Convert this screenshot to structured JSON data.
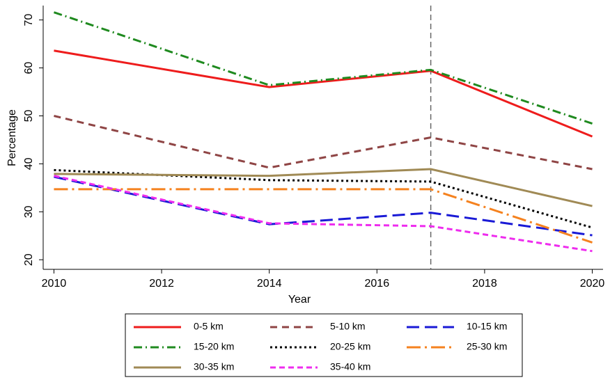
{
  "chart_data": {
    "type": "line",
    "x_label": "Year",
    "y_label": "Percentage",
    "x": [
      2010,
      2014,
      2017,
      2020
    ],
    "xlim": [
      2009.8,
      2020.2
    ],
    "xticks": [
      2010,
      2012,
      2014,
      2016,
      2018,
      2020
    ],
    "ylim": [
      18,
      73
    ],
    "yticks": [
      20,
      30,
      40,
      50,
      60,
      70
    ],
    "vline": 2017,
    "series": [
      {
        "name": "0-5 km",
        "color": "#ee1c1c",
        "dash": "solid",
        "values": [
          63.6,
          56,
          59.4,
          45.7
        ]
      },
      {
        "name": "5-10 km",
        "color": "#8f4545",
        "dash": "dash",
        "values": [
          50,
          39.2,
          45.5,
          38.9
        ]
      },
      {
        "name": "10-15 km",
        "color": "#1a1ad6",
        "dash": "longdash",
        "values": [
          37.3,
          27.4,
          29.8,
          25.1
        ]
      },
      {
        "name": "15-20 km",
        "color": "#1f8a1f",
        "dash": "dashdot",
        "values": [
          71.6,
          56.4,
          59.6,
          48.4
        ]
      },
      {
        "name": "20-25 km",
        "color": "#000000",
        "dash": "dot",
        "values": [
          38.7,
          36.6,
          36.3,
          26.7
        ]
      },
      {
        "name": "25-30 km",
        "color": "#f5821f",
        "dash": "longdashdot",
        "values": [
          34.7,
          34.7,
          34.7,
          23.6
        ]
      },
      {
        "name": "30-35 km",
        "color": "#a08a55",
        "dash": "solid",
        "values": [
          37.9,
          37.5,
          38.9,
          31.2
        ]
      },
      {
        "name": "35-40 km",
        "color": "#ee2cee",
        "dash": "shortdash",
        "values": [
          37.5,
          27.6,
          27,
          21.8
        ]
      }
    ]
  }
}
